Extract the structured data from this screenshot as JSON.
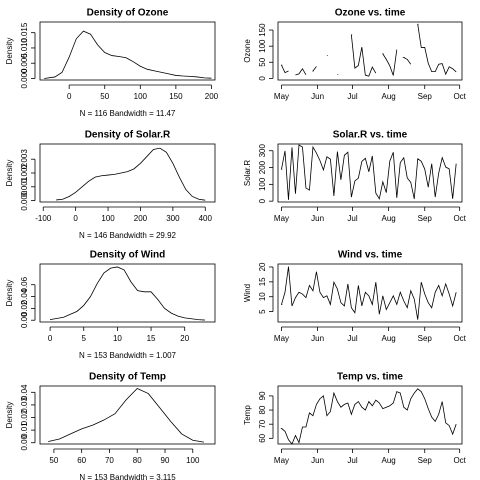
{
  "chart_data": [
    {
      "type": "line",
      "title": "Density of Ozone",
      "xlabel": "N = 116   Bandwidth = 11.47",
      "ylabel": "Density",
      "color": "#000000",
      "x": [
        -35,
        -20,
        -10,
        0,
        10,
        20,
        30,
        40,
        50,
        60,
        70,
        80,
        90,
        100,
        110,
        120,
        130,
        140,
        150,
        160,
        170,
        180,
        190,
        200
      ],
      "values": [
        0,
        0.0005,
        0.002,
        0.007,
        0.013,
        0.0155,
        0.0145,
        0.011,
        0.0085,
        0.0075,
        0.0072,
        0.0068,
        0.0055,
        0.004,
        0.003,
        0.0025,
        0.002,
        0.0015,
        0.001,
        0.0008,
        0.0007,
        0.0005,
        0.0002,
        0.0001
      ],
      "xlim": [
        -41,
        205
      ],
      "ylim": [
        -0.0005,
        0.0185
      ],
      "xticks": [
        0,
        50,
        100,
        150,
        200
      ],
      "yticks": [
        {
          "value": 0,
          "label": "0.000"
        },
        0.005,
        {
          "value": 0.01,
          "label": "0.010"
        },
        0.015
      ]
    },
    {
      "type": "line",
      "title": "Ozone vs. time",
      "ylabel": "Ozone",
      "color": "#000000",
      "x": [
        1,
        4,
        7,
        10,
        13,
        16,
        19,
        22,
        25,
        28,
        31,
        34,
        37,
        40,
        43,
        46,
        49,
        52,
        55,
        58,
        61,
        64,
        67,
        70,
        73,
        76,
        79,
        82,
        85,
        88,
        91,
        94,
        97,
        100,
        103,
        106,
        109,
        112,
        115,
        118,
        121,
        124,
        127,
        130,
        133,
        136,
        139,
        142,
        145,
        148,
        151
      ],
      "values": [
        41,
        18,
        23,
        null,
        11,
        14,
        30,
        11,
        null,
        23,
        37,
        null,
        null,
        71,
        null,
        null,
        12,
        null,
        null,
        null,
        135,
        32,
        40,
        97,
        10,
        7,
        35,
        16,
        null,
        76,
        59,
        39,
        9,
        89,
        null,
        65,
        59,
        44,
        null,
        168,
        96,
        96,
        47,
        21,
        21,
        44,
        46,
        13,
        36,
        30,
        20
      ],
      "xlim": [
        -2,
        156
      ],
      "ylim": [
        -5,
        175
      ],
      "xticks": [
        {
          "value": 1,
          "label": "May"
        },
        {
          "value": 32,
          "label": "Jun"
        },
        {
          "value": 62,
          "label": "Jul"
        },
        {
          "value": 93,
          "label": "Aug"
        },
        {
          "value": 124,
          "label": "Sep"
        },
        {
          "value": 154,
          "label": "Oct"
        }
      ],
      "yticks": [
        0,
        50,
        100,
        150
      ]
    },
    {
      "type": "line",
      "title": "Density of Solar.R",
      "xlabel": "N = 146   Bandwidth = 29.92",
      "ylabel": "Density",
      "color": "#000000",
      "x": [
        -60,
        -40,
        -20,
        0,
        20,
        40,
        60,
        80,
        100,
        120,
        140,
        160,
        180,
        200,
        220,
        240,
        260,
        280,
        300,
        320,
        340,
        360,
        380,
        400
      ],
      "values": [
        5e-05,
        0.0001,
        0.0003,
        0.0006,
        0.001,
        0.0014,
        0.0017,
        0.0018,
        0.00185,
        0.0019,
        0.002,
        0.0021,
        0.0023,
        0.0027,
        0.0032,
        0.0037,
        0.0038,
        0.0035,
        0.0027,
        0.0017,
        0.0008,
        0.0003,
        0.0001,
        3e-05
      ],
      "xlim": [
        -110,
        430
      ],
      "ylim": [
        -0.0001,
        0.0041
      ],
      "xticks": [
        -100,
        0,
        100,
        200,
        300,
        400
      ],
      "yticks": [
        {
          "value": 0,
          "label": "0.000"
        },
        0.001,
        0.002,
        0.003
      ]
    },
    {
      "type": "line",
      "title": "Solar.R vs. time",
      "ylabel": "Solar.R",
      "color": "#000000",
      "x": [
        1,
        4,
        7,
        10,
        13,
        16,
        19,
        22,
        25,
        28,
        31,
        34,
        37,
        40,
        43,
        46,
        49,
        52,
        55,
        58,
        61,
        64,
        67,
        70,
        73,
        76,
        79,
        82,
        85,
        88,
        91,
        94,
        97,
        100,
        103,
        106,
        109,
        112,
        115,
        118,
        121,
        124,
        127,
        130,
        133,
        136,
        139,
        142,
        145,
        148,
        151
      ],
      "values": [
        190,
        299,
        8,
        320,
        44,
        334,
        322,
        78,
        66,
        322,
        286,
        242,
        186,
        264,
        250,
        31,
        295,
        127,
        273,
        291,
        24,
        120,
        137,
        236,
        255,
        175,
        269,
        48,
        14,
        115,
        51,
        238,
        291,
        20,
        229,
        258,
        138,
        112,
        13,
        252,
        237,
        191,
        83,
        223,
        24,
        167,
        259,
        203,
        192,
        14,
        223
      ],
      "xlim": [
        -2,
        156
      ],
      "ylim": [
        -5,
        340
      ],
      "xticks": [
        {
          "value": 1,
          "label": "May"
        },
        {
          "value": 32,
          "label": "Jun"
        },
        {
          "value": 62,
          "label": "Jul"
        },
        {
          "value": 93,
          "label": "Aug"
        },
        {
          "value": 124,
          "label": "Sep"
        },
        {
          "value": 154,
          "label": "Oct"
        }
      ],
      "yticks": [
        0,
        100,
        200,
        300
      ]
    },
    {
      "type": "line",
      "title": "Density of Wind",
      "xlabel": "N = 153   Bandwidth = 1.007",
      "ylabel": "Density",
      "color": "#000000",
      "x": [
        0,
        2,
        4,
        5,
        6,
        7,
        8,
        9,
        10,
        11,
        12,
        13,
        14,
        15,
        16,
        17,
        18,
        19,
        20,
        22,
        23
      ],
      "values": [
        0.001,
        0.005,
        0.015,
        0.025,
        0.04,
        0.062,
        0.08,
        0.088,
        0.09,
        0.085,
        0.065,
        0.05,
        0.048,
        0.048,
        0.035,
        0.02,
        0.012,
        0.007,
        0.004,
        0.001,
        0.0003
      ],
      "xlim": [
        -1.5,
        24.5
      ],
      "ylim": [
        -0.003,
        0.095
      ],
      "xticks": [
        0,
        5,
        10,
        15,
        20
      ],
      "yticks": [
        {
          "value": 0,
          "label": "0.00"
        },
        0.02,
        0.04,
        0.06
      ]
    },
    {
      "type": "line",
      "title": "Wind vs. time",
      "ylabel": "Wind",
      "color": "#000000",
      "x": [
        1,
        4,
        7,
        10,
        13,
        16,
        19,
        22,
        25,
        28,
        31,
        34,
        37,
        40,
        43,
        46,
        49,
        52,
        55,
        58,
        61,
        64,
        67,
        70,
        73,
        76,
        79,
        82,
        85,
        88,
        91,
        94,
        97,
        100,
        103,
        106,
        109,
        112,
        115,
        118,
        121,
        124,
        127,
        130,
        133,
        136,
        139,
        142,
        145,
        148,
        151
      ],
      "values": [
        7.4,
        11.5,
        20.1,
        6.9,
        9.7,
        11.5,
        10.9,
        9.7,
        13.8,
        12.0,
        18.4,
        11.5,
        9.7,
        10.3,
        7.4,
        14.9,
        12.6,
        8.0,
        6.9,
        14.3,
        6.3,
        4.6,
        13.8,
        6.9,
        11.5,
        10.3,
        7.4,
        14.9,
        4.1,
        10.3,
        5.7,
        8.0,
        10.3,
        7.4,
        11.5,
        8.6,
        6.3,
        12.0,
        9.2,
        2.3,
        14.9,
        10.9,
        8.0,
        6.3,
        11.5,
        13.8,
        10.3,
        14.3,
        10.9,
        6.9,
        11.5
      ],
      "xlim": [
        -2,
        156
      ],
      "ylim": [
        1.5,
        21
      ],
      "xticks": [
        {
          "value": 1,
          "label": "May"
        },
        {
          "value": 32,
          "label": "Jun"
        },
        {
          "value": 62,
          "label": "Jul"
        },
        {
          "value": 93,
          "label": "Aug"
        },
        {
          "value": 124,
          "label": "Sep"
        },
        {
          "value": 154,
          "label": "Oct"
        }
      ],
      "yticks": [
        5,
        10,
        15,
        20
      ]
    },
    {
      "type": "line",
      "title": "Density of Temp",
      "xlabel": "N = 153   Bandwidth = 3.115",
      "ylabel": "Density",
      "color": "#000000",
      "x": [
        48,
        52,
        56,
        60,
        64,
        68,
        72,
        76,
        80,
        84,
        88,
        92,
        96,
        100,
        104
      ],
      "values": [
        0.001,
        0.003,
        0.007,
        0.011,
        0.014,
        0.018,
        0.023,
        0.034,
        0.043,
        0.039,
        0.028,
        0.017,
        0.007,
        0.002,
        0.0005
      ],
      "xlim": [
        45,
        108
      ],
      "ylim": [
        -0.001,
        0.045
      ],
      "xticks": [
        50,
        60,
        70,
        80,
        90,
        100
      ],
      "yticks": [
        {
          "value": 0,
          "label": "0.00"
        },
        0.01,
        0.02,
        0.03,
        0.04
      ]
    },
    {
      "type": "line",
      "title": "Temp vs. time",
      "ylabel": "Temp",
      "color": "#000000",
      "x": [
        1,
        4,
        7,
        10,
        13,
        16,
        19,
        22,
        25,
        28,
        31,
        34,
        37,
        40,
        43,
        46,
        49,
        52,
        55,
        58,
        61,
        64,
        67,
        70,
        73,
        76,
        79,
        82,
        85,
        88,
        91,
        94,
        97,
        100,
        103,
        106,
        109,
        112,
        115,
        118,
        121,
        124,
        127,
        130,
        133,
        136,
        139,
        142,
        145,
        148,
        151
      ],
      "values": [
        67,
        65,
        59,
        56,
        62,
        57,
        68,
        68,
        78,
        76,
        84,
        88,
        90,
        76,
        79,
        92,
        86,
        82,
        84,
        85,
        77,
        84,
        86,
        82,
        80,
        86,
        83,
        87,
        85,
        81,
        82,
        83,
        85,
        93,
        92,
        82,
        80,
        88,
        92,
        95,
        93,
        88,
        81,
        75,
        72,
        77,
        86,
        71,
        69,
        63,
        70
      ],
      "xlim": [
        -2,
        156
      ],
      "ylim": [
        56,
        97
      ],
      "xticks": [
        {
          "value": 1,
          "label": "May"
        },
        {
          "value": 32,
          "label": "Jun"
        },
        {
          "value": 62,
          "label": "Jul"
        },
        {
          "value": 93,
          "label": "Aug"
        },
        {
          "value": 124,
          "label": "Sep"
        },
        {
          "value": 154,
          "label": "Oct"
        }
      ],
      "yticks": [
        60,
        70,
        80,
        90
      ]
    }
  ]
}
